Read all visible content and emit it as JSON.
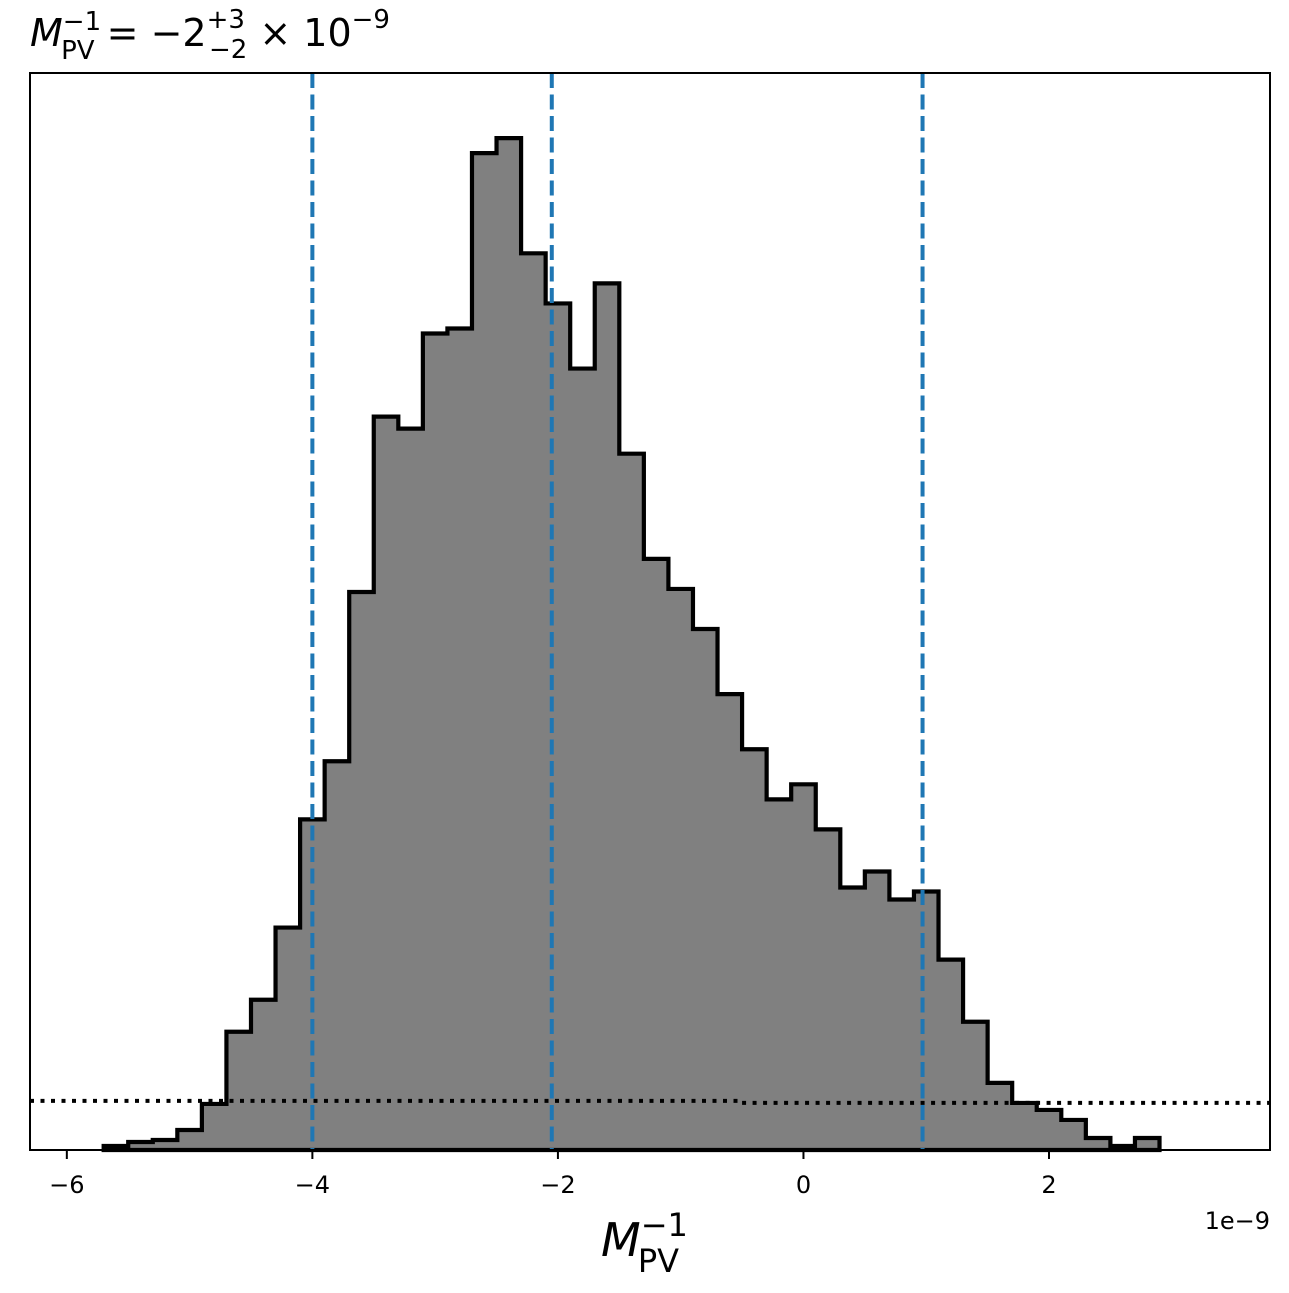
{
  "chart_data": {
    "type": "histogram",
    "title": {
      "base": "M",
      "base_sup": "−1",
      "base_sub": "PV",
      "eq": " = −2",
      "err_up": "+3",
      "err_down": "−2",
      "times": " × 10",
      "exp": "−9"
    },
    "xlabel": {
      "base": "M",
      "sup": "−1",
      "sub": "PV"
    },
    "x_offset_label": "1e−9",
    "xlim": [
      -6.3,
      3.8
    ],
    "ylim": [
      0,
      1.075
    ],
    "xticks": [
      {
        "value": -6,
        "label": "−6"
      },
      {
        "value": -4,
        "label": "−4"
      },
      {
        "value": -2,
        "label": "−2"
      },
      {
        "value": 0,
        "label": "0"
      },
      {
        "value": 2,
        "label": "2"
      }
    ],
    "bin_edges": [
      -5.7,
      -5.5,
      -5.3,
      -5.1,
      -4.9,
      -4.7,
      -4.5,
      -4.3,
      -4.1,
      -3.9,
      -3.7,
      -3.5,
      -3.3,
      -3.1,
      -2.9,
      -2.7,
      -2.5,
      -2.3,
      -2.1,
      -1.9,
      -1.7,
      -1.5,
      -1.3,
      -1.1,
      -0.9,
      -0.7,
      -0.5,
      -0.3,
      -0.1,
      0.1,
      0.3,
      0.5,
      0.7,
      0.9,
      1.1,
      1.3,
      1.5,
      1.7,
      1.9,
      2.1,
      2.3,
      2.5,
      2.7,
      2.9
    ],
    "counts": [
      0.004,
      0.008,
      0.01,
      0.02,
      0.046,
      0.118,
      0.15,
      0.222,
      0.33,
      0.388,
      0.557,
      0.732,
      0.72,
      0.815,
      0.82,
      0.995,
      1.01,
      0.895,
      0.845,
      0.78,
      0.865,
      0.695,
      0.59,
      0.56,
      0.52,
      0.455,
      0.4,
      0.35,
      0.365,
      0.32,
      0.262,
      0.278,
      0.25,
      0.258,
      0.19,
      0.128,
      0.067,
      0.047,
      0.04,
      0.03,
      0.012,
      0.004,
      0.012
    ],
    "fill_color": "#808080",
    "edge_color": "#000000",
    "quantile_lines": {
      "values": [
        -4.0,
        -2.05,
        0.97
      ],
      "color": "#1f77b4",
      "style": "dashed"
    },
    "prior_line": {
      "style": "dotted",
      "color": "#000000",
      "segments": [
        {
          "x": [
            -6.3,
            -0.5
          ],
          "y": 0.049
        },
        {
          "x": [
            -0.5,
            3.8
          ],
          "y": 0.047
        }
      ]
    },
    "grid": false
  }
}
